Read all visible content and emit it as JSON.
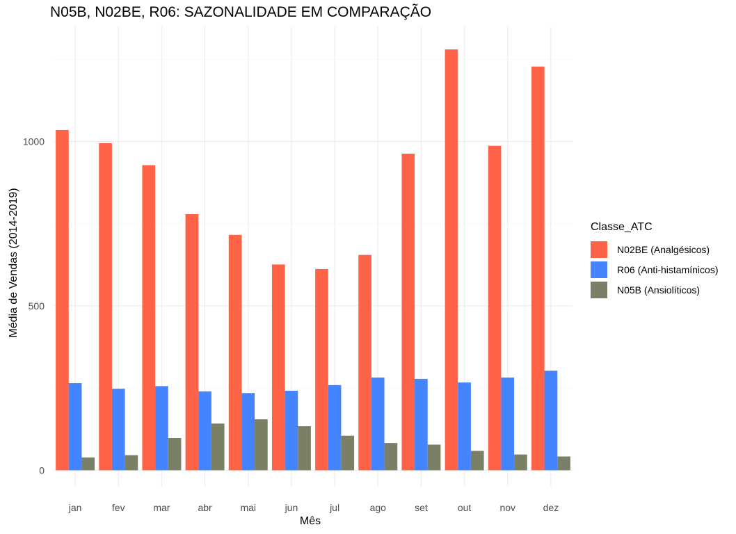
{
  "chart_data": {
    "type": "bar",
    "title": "N05B, N02BE, R06: SAZONALIDADE EM COMPARAÇÃO",
    "xlabel": "Mês",
    "ylabel": "Média de Vendas (2014-2019)",
    "categories": [
      "jan",
      "fev",
      "mar",
      "abr",
      "mai",
      "jun",
      "jul",
      "ago",
      "set",
      "out",
      "nov",
      "dez"
    ],
    "series": [
      {
        "name": "N02BE (Analgésicos)",
        "color": "#FF6347",
        "values": [
          1035,
          995,
          928,
          779,
          716,
          626,
          612,
          655,
          963,
          1280,
          987,
          1228
        ]
      },
      {
        "name": "R06 (Anti-histamínicos)",
        "color": "#4485FF",
        "values": [
          265,
          248,
          256,
          240,
          235,
          242,
          259,
          282,
          278,
          267,
          282,
          303
        ]
      },
      {
        "name": "N05B (Ansiolíticos)",
        "color": "#7A8065",
        "values": [
          39,
          46,
          98,
          142,
          155,
          134,
          105,
          83,
          78,
          59,
          48,
          42
        ]
      }
    ],
    "yticks": [
      0,
      500,
      1000
    ],
    "ylim": [
      -50,
      1350
    ],
    "grid": true,
    "legend": {
      "title": "Classe_ATC",
      "position": "right"
    }
  }
}
